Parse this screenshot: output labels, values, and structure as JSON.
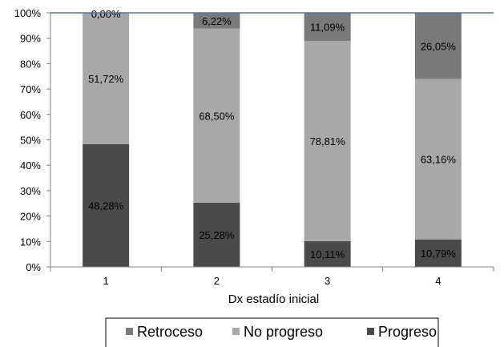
{
  "chart_data": {
    "type": "bar",
    "stacked": true,
    "percent": true,
    "categories": [
      "1",
      "2",
      "3",
      "4"
    ],
    "xlabel": "Dx estadío inicial",
    "ylabel": "",
    "ylim": [
      0,
      100
    ],
    "yticks": [
      "0%",
      "10%",
      "20%",
      "30%",
      "40%",
      "50%",
      "60%",
      "70%",
      "80%",
      "90%",
      "100%"
    ],
    "grid": false,
    "legend_position": "bottom",
    "series": [
      {
        "name": "Progreso",
        "values": [
          48.28,
          25.28,
          10.11,
          10.79
        ],
        "labels": [
          "48,28%",
          "25,28%",
          "10,11%",
          "10,79%"
        ],
        "color": "#4a4a4a"
      },
      {
        "name": "No progreso",
        "values": [
          51.72,
          68.5,
          78.81,
          63.16
        ],
        "labels": [
          "51,72%",
          "68,50%",
          "78,81%",
          "63,16%"
        ],
        "color": "#a8a8a8"
      },
      {
        "name": "Retroceso",
        "values": [
          0.0,
          6.22,
          11.09,
          26.05
        ],
        "labels": [
          "0,00%",
          "6,22%",
          "11,09%",
          "26,05%"
        ],
        "color": "#7a7a7a"
      }
    ],
    "legend_order": [
      "Retroceso",
      "No progreso",
      "Progreso"
    ],
    "top_line_color": "#4472c4"
  }
}
